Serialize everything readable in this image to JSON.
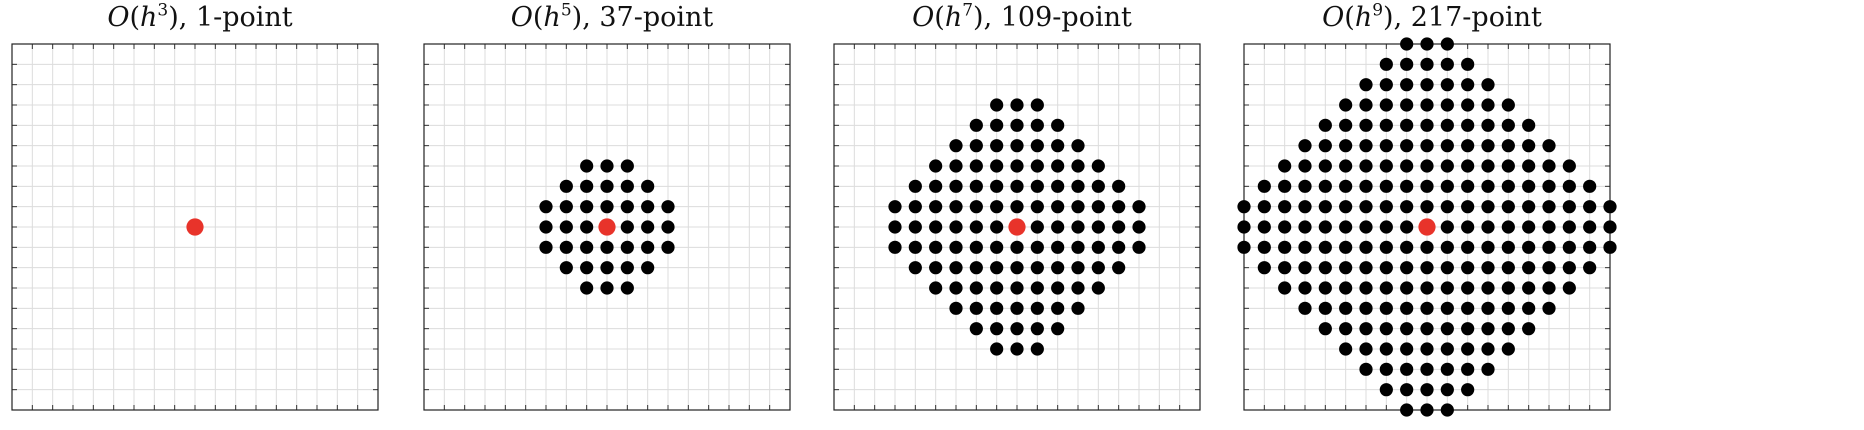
{
  "figure": {
    "grid": true,
    "dot_color": "#000000",
    "center_color": "#e8332a"
  },
  "chart_data": [
    {
      "type": "scatter",
      "title": "O(h³), 1-point",
      "title_parts": {
        "O": "O",
        "h": "h",
        "exp": "3",
        "suffix": ", 1-point"
      },
      "points": 1,
      "xlim": [
        -9,
        9
      ],
      "ylim": [
        -9,
        9
      ],
      "grid": true,
      "center": [
        0,
        0
      ],
      "stencil_row_halfwidths": [
        [
          0,
          0
        ]
      ]
    },
    {
      "type": "scatter",
      "title": "O(h⁵), 37-point",
      "title_parts": {
        "O": "O",
        "h": "h",
        "exp": "5",
        "suffix": ", 37-point"
      },
      "points": 37,
      "xlim": [
        -9,
        9
      ],
      "ylim": [
        -9,
        9
      ],
      "grid": true,
      "center": [
        0,
        0
      ],
      "stencil_row_halfwidths": [
        [
          3,
          1
        ],
        [
          2,
          2
        ],
        [
          1,
          3
        ],
        [
          0,
          3
        ],
        [
          -1,
          3
        ],
        [
          -2,
          2
        ],
        [
          -3,
          1
        ]
      ]
    },
    {
      "type": "scatter",
      "title": "O(h⁷), 109-point",
      "title_parts": {
        "O": "O",
        "h": "h",
        "exp": "7",
        "suffix": ", 109-point"
      },
      "points": 109,
      "xlim": [
        -9,
        9
      ],
      "ylim": [
        -9,
        9
      ],
      "grid": true,
      "center": [
        0,
        0
      ],
      "stencil_row_halfwidths": [
        [
          6,
          1
        ],
        [
          5,
          2
        ],
        [
          4,
          3
        ],
        [
          3,
          4
        ],
        [
          2,
          5
        ],
        [
          1,
          6
        ],
        [
          0,
          6
        ],
        [
          -1,
          6
        ],
        [
          -2,
          5
        ],
        [
          -3,
          4
        ],
        [
          -4,
          3
        ],
        [
          -5,
          2
        ],
        [
          -6,
          1
        ]
      ]
    },
    {
      "type": "scatter",
      "title": "O(h⁹), 217-point",
      "title_parts": {
        "O": "O",
        "h": "h",
        "exp": "9",
        "suffix": ", 217-point"
      },
      "points": 217,
      "xlim": [
        -9,
        9
      ],
      "ylim": [
        -9,
        9
      ],
      "grid": true,
      "center": [
        0,
        0
      ],
      "stencil_row_halfwidths": [
        [
          9,
          1
        ],
        [
          8,
          2
        ],
        [
          7,
          3
        ],
        [
          6,
          4
        ],
        [
          5,
          5
        ],
        [
          4,
          6
        ],
        [
          3,
          7
        ],
        [
          2,
          8
        ],
        [
          1,
          9
        ],
        [
          0,
          9
        ],
        [
          -1,
          9
        ],
        [
          -2,
          8
        ],
        [
          -3,
          7
        ],
        [
          -4,
          6
        ],
        [
          -5,
          5
        ],
        [
          -6,
          4
        ],
        [
          -7,
          3
        ],
        [
          -8,
          2
        ],
        [
          -9,
          1
        ]
      ]
    }
  ]
}
